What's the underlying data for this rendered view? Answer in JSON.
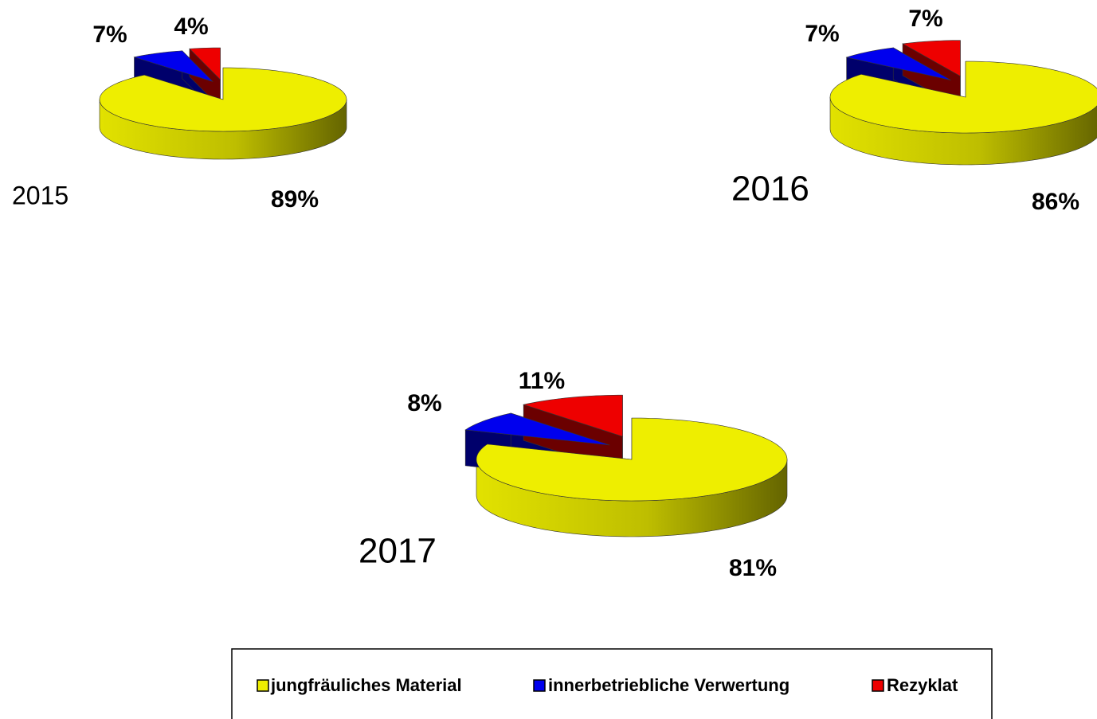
{
  "chart_data": [
    {
      "type": "pie",
      "title": "2015",
      "values": [
        89,
        7,
        4
      ],
      "value_labels": [
        "89%",
        "7%",
        "4%"
      ]
    },
    {
      "type": "pie",
      "title": "2016",
      "values": [
        86,
        7,
        7
      ],
      "value_labels": [
        "86%",
        "7%",
        "7%"
      ]
    },
    {
      "type": "pie",
      "title": "2017",
      "values": [
        81,
        8,
        11
      ],
      "value_labels": [
        "81%",
        "8%",
        "11%"
      ]
    }
  ],
  "legend": {
    "labels": [
      "jungfräuliches Material",
      "innerbetriebliche Verwertung",
      "Rezyklat"
    ],
    "colors": [
      "#eeee00",
      "#0000ee",
      "#ee0000"
    ]
  }
}
